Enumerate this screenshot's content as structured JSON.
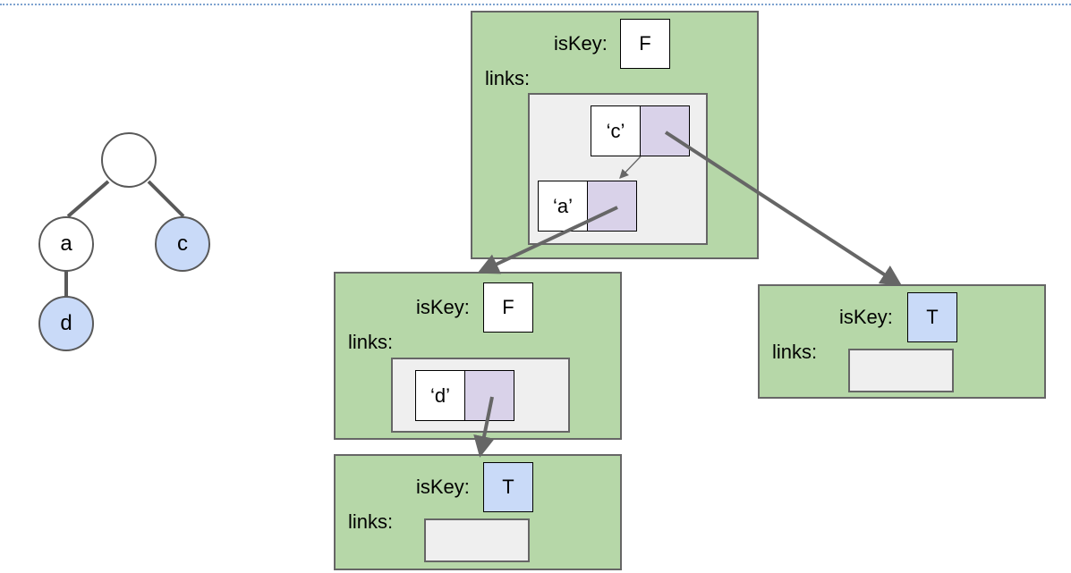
{
  "tree": {
    "root": {
      "label": "",
      "is_key": false
    },
    "nodes": [
      {
        "label": "a",
        "is_key": false
      },
      {
        "label": "c",
        "is_key": true
      },
      {
        "label": "d",
        "is_key": true
      }
    ]
  },
  "labels": {
    "iskey": "isKey:",
    "links": "links:"
  },
  "trie_nodes": {
    "root": {
      "iskey_value": "F",
      "entries": [
        {
          "key": "‘c’"
        },
        {
          "key": "‘a’"
        }
      ]
    },
    "a": {
      "iskey_value": "F",
      "entries": [
        {
          "key": "‘d’"
        }
      ]
    },
    "c": {
      "iskey_value": "T",
      "entries": []
    },
    "d": {
      "iskey_value": "T",
      "entries": []
    }
  },
  "colors": {
    "node_fill": "#b6d7a8",
    "key_true_fill": "#c9daf8",
    "pointer_fill": "#d9d2e9",
    "links_panel_fill": "#efefef",
    "edge": "#666666"
  }
}
